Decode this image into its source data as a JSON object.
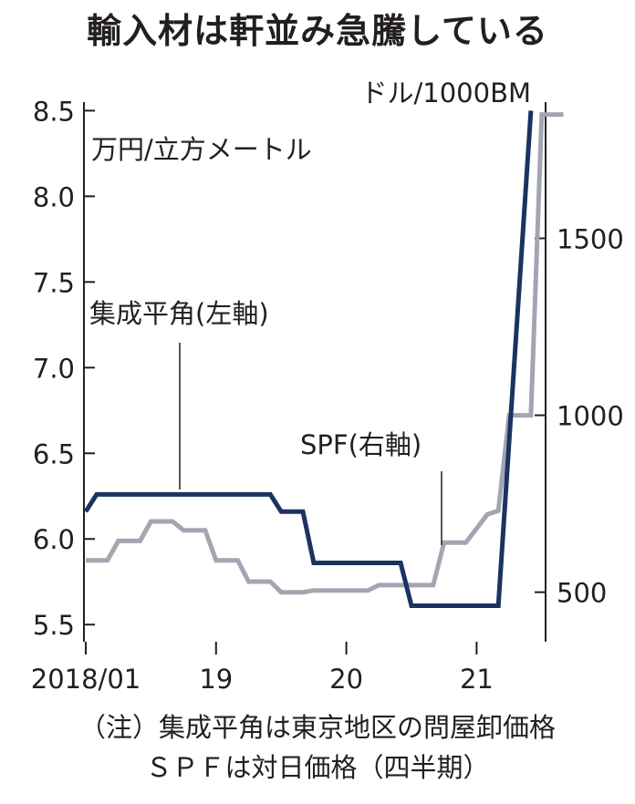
{
  "title": "輸入材は軒並み急騰している",
  "notes": [
    "（注）集成平角は東京地区の問屋卸価格",
    "ＳＰＦは対日価格（四半期）"
  ],
  "chart_data": {
    "type": "line",
    "x_tick_labels": [
      "2018/01",
      "19",
      "20",
      "21"
    ],
    "left_axis": {
      "unit": "万円/立方メートル",
      "ylim": [
        5.4,
        8.55
      ],
      "ticks": [
        5.5,
        6.0,
        6.5,
        7.0,
        7.5,
        8.0,
        8.5
      ],
      "tick_labels": [
        "5.5",
        "6.0",
        "6.5",
        "7.0",
        "7.5",
        "8.0",
        "8.5"
      ]
    },
    "right_axis": {
      "unit": "ドル/1000BM",
      "ylim": [
        360,
        1885
      ],
      "ticks": [
        500,
        1000,
        1500
      ],
      "tick_labels": [
        "500",
        "1000",
        "1500"
      ]
    },
    "series": [
      {
        "name": "集成平角(左軸)",
        "axis": "left",
        "color": "#1c3361",
        "points": [
          [
            "2018-01",
            6.16
          ],
          [
            "2018-02",
            6.26
          ],
          [
            "2019-06",
            6.26
          ],
          [
            "2019-07",
            6.16
          ],
          [
            "2019-09",
            6.16
          ],
          [
            "2019-10",
            5.86
          ],
          [
            "2020-06",
            5.86
          ],
          [
            "2020-07",
            5.61
          ],
          [
            "2021-03",
            5.61
          ],
          [
            "2021-06",
            8.5
          ]
        ]
      },
      {
        "name": "SPF(右軸)",
        "axis": "right",
        "color": "#a3a6b1",
        "points": [
          [
            "2018-01",
            590
          ],
          [
            "2018-03",
            590
          ],
          [
            "2018-04",
            645
          ],
          [
            "2018-06",
            645
          ],
          [
            "2018-07",
            700
          ],
          [
            "2018-09",
            700
          ],
          [
            "2018-10",
            675
          ],
          [
            "2018-12",
            675
          ],
          [
            "2019-01",
            590
          ],
          [
            "2019-03",
            590
          ],
          [
            "2019-04",
            530
          ],
          [
            "2019-06",
            530
          ],
          [
            "2019-07",
            500
          ],
          [
            "2019-09",
            500
          ],
          [
            "2019-10",
            505
          ],
          [
            "2020-03",
            505
          ],
          [
            "2020-04",
            520
          ],
          [
            "2020-09",
            520
          ],
          [
            "2020-10",
            640
          ],
          [
            "2020-12",
            640
          ],
          [
            "2021-01",
            680
          ],
          [
            "2021-02",
            720
          ],
          [
            "2021-03",
            730
          ],
          [
            "2021-04",
            1000
          ],
          [
            "2021-06",
            1000
          ],
          [
            "2021-07",
            1850
          ],
          [
            "2021-09",
            1850
          ]
        ]
      }
    ],
    "annotations": [
      "集成平角(左軸)",
      "SPF(右軸)"
    ]
  }
}
